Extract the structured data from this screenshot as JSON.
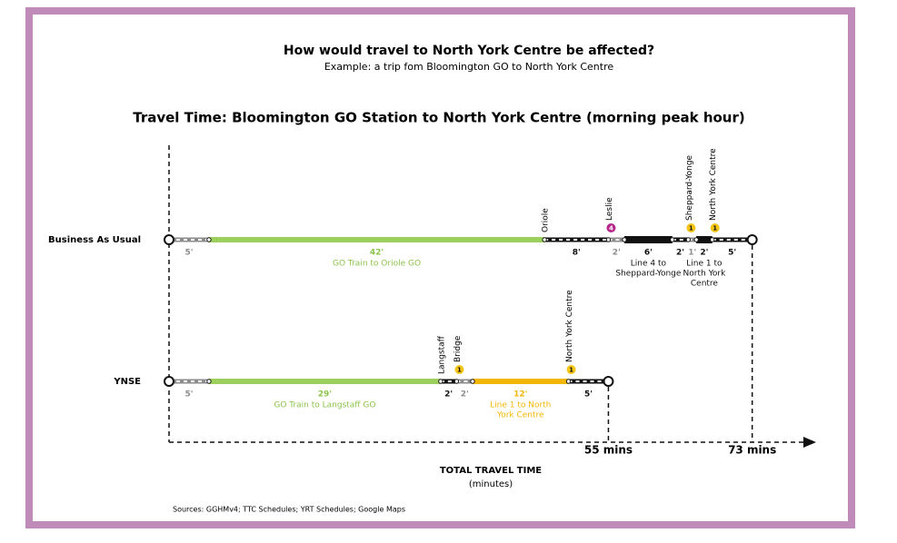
{
  "header": {
    "title": "How would travel to North York Centre be affected?",
    "subtitle": "Example: a trip fom Bloomington GO to North York Centre"
  },
  "chart_title": "Travel Time: Bloomington GO Station to North York Centre (morning peak hour)",
  "scenarios": [
    {
      "name": "Business As Usual",
      "total_label": "73 mins",
      "segments": [
        {
          "minutes": 5,
          "label": "5'",
          "color": "#8c8c8c",
          "dashed": true
        },
        {
          "minutes": 42,
          "label": "42'",
          "color": "#9ccf5e",
          "description": [
            "GO Train to Oriole GO"
          ]
        },
        {
          "minutes": 8,
          "label": "8'",
          "color": "#111111",
          "dashed": true,
          "station": {
            "name": "Oriole"
          }
        },
        {
          "minutes": 2,
          "label": "2'",
          "color": "#8c8c8c",
          "dashed": true,
          "station": {
            "name": "Leslie",
            "badge": "4",
            "badge_color": "#b5258a"
          }
        },
        {
          "minutes": 6,
          "label": "6'",
          "color": "#111111",
          "description": [
            "Line 4 to",
            "Sheppard-Yonge"
          ]
        },
        {
          "minutes": 2,
          "label": "2'",
          "color": "#111111",
          "dashed": true
        },
        {
          "minutes": 1,
          "label": "1'",
          "color": "#8c8c8c",
          "dashed": true,
          "station": {
            "name": "Sheppard-Yonge",
            "badge": "1",
            "badge_color": "#f5c518"
          }
        },
        {
          "minutes": 2,
          "label": "2'",
          "color": "#111111",
          "description": [
            "Line 1 to",
            "North York",
            "Centre"
          ]
        },
        {
          "minutes": 5,
          "label": "5'",
          "color": "#111111",
          "dashed": true,
          "station": {
            "name": "North York Centre",
            "badge": "1",
            "badge_color": "#f5c518"
          }
        }
      ]
    },
    {
      "name": "YNSE",
      "total_label": "55 mins",
      "segments": [
        {
          "minutes": 5,
          "label": "5'",
          "color": "#8c8c8c",
          "dashed": true
        },
        {
          "minutes": 29,
          "label": "29'",
          "color": "#9ccf5e",
          "description": [
            "GO Train to Langstaff GO"
          ]
        },
        {
          "minutes": 2,
          "label": "2'",
          "color": "#111111",
          "dashed": true,
          "station": {
            "name": "Langstaff"
          }
        },
        {
          "minutes": 2,
          "label": "2'",
          "color": "#8c8c8c",
          "dashed": true,
          "station": {
            "name": "Bridge",
            "badge": "1",
            "badge_color": "#f5c518"
          }
        },
        {
          "minutes": 12,
          "label": "12'",
          "color": "#f2b705",
          "description": [
            "Line 1 to North",
            "York Centre"
          ]
        },
        {
          "minutes": 5,
          "label": "5'",
          "color": "#111111",
          "dashed": true,
          "station": {
            "name": "North York Centre",
            "badge": "1",
            "badge_color": "#f5c518"
          }
        }
      ]
    }
  ],
  "axis_label": "TOTAL TRAVEL TIME",
  "axis_unit": "(minutes)",
  "sources": "Sources: GGHMv4; TTC Schedules; YRT Schedules; Google Maps"
}
